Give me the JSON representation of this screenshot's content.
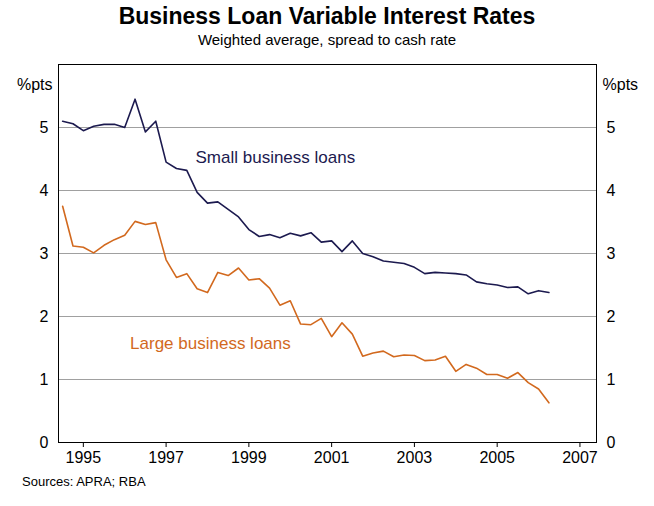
{
  "chart_data": {
    "type": "line",
    "title": "Business Loan Variable Interest Rates",
    "subtitle": "Weighted average, spread to cash rate",
    "y_label": "%pts",
    "caption": "Sources: APRA; RBA",
    "x": [
      1994.5,
      1994.75,
      1995.0,
      1995.25,
      1995.5,
      1995.75,
      1996.0,
      1996.25,
      1996.5,
      1996.75,
      1997.0,
      1997.25,
      1997.5,
      1997.75,
      1998.0,
      1998.25,
      1998.5,
      1998.75,
      1999.0,
      1999.25,
      1999.5,
      1999.75,
      2000.0,
      2000.25,
      2000.5,
      2000.75,
      2001.0,
      2001.25,
      2001.5,
      2001.75,
      2002.0,
      2002.25,
      2002.5,
      2002.75,
      2003.0,
      2003.25,
      2003.5,
      2003.75,
      2004.0,
      2004.25,
      2004.5,
      2004.75,
      2005.0,
      2005.25,
      2005.5,
      2005.75,
      2006.0,
      2006.25
    ],
    "series": [
      {
        "name": "Small business loans",
        "color": "#1c1a4f",
        "values": [
          5.1,
          5.06,
          4.95,
          5.02,
          5.05,
          5.05,
          5.0,
          5.45,
          4.93,
          5.1,
          4.45,
          4.35,
          4.32,
          3.97,
          3.8,
          3.82,
          3.7,
          3.58,
          3.38,
          3.27,
          3.3,
          3.25,
          3.32,
          3.28,
          3.33,
          3.18,
          3.2,
          3.03,
          3.2,
          3.0,
          2.95,
          2.88,
          2.86,
          2.84,
          2.78,
          2.68,
          2.7,
          2.69,
          2.68,
          2.66,
          2.55,
          2.52,
          2.5,
          2.46,
          2.47,
          2.36,
          2.41,
          2.38
        ]
      },
      {
        "name": "Large business loans",
        "color": "#d2691e",
        "values": [
          3.75,
          3.12,
          3.1,
          3.01,
          3.13,
          3.22,
          3.29,
          3.51,
          3.46,
          3.49,
          2.9,
          2.62,
          2.68,
          2.44,
          2.38,
          2.7,
          2.65,
          2.77,
          2.58,
          2.6,
          2.45,
          2.18,
          2.25,
          1.88,
          1.87,
          1.97,
          1.68,
          1.9,
          1.72,
          1.37,
          1.42,
          1.45,
          1.36,
          1.39,
          1.38,
          1.3,
          1.31,
          1.37,
          1.13,
          1.24,
          1.18,
          1.08,
          1.08,
          1.02,
          1.11,
          0.95,
          0.85,
          0.63
        ]
      }
    ],
    "xlim": [
      1994.4,
      2007.4
    ],
    "xticks": [
      1995,
      1997,
      1999,
      2001,
      2003,
      2005,
      2007
    ],
    "ylim": [
      0,
      6
    ],
    "yticks": [
      0,
      1,
      2,
      3,
      4,
      5
    ],
    "grid": true
  }
}
